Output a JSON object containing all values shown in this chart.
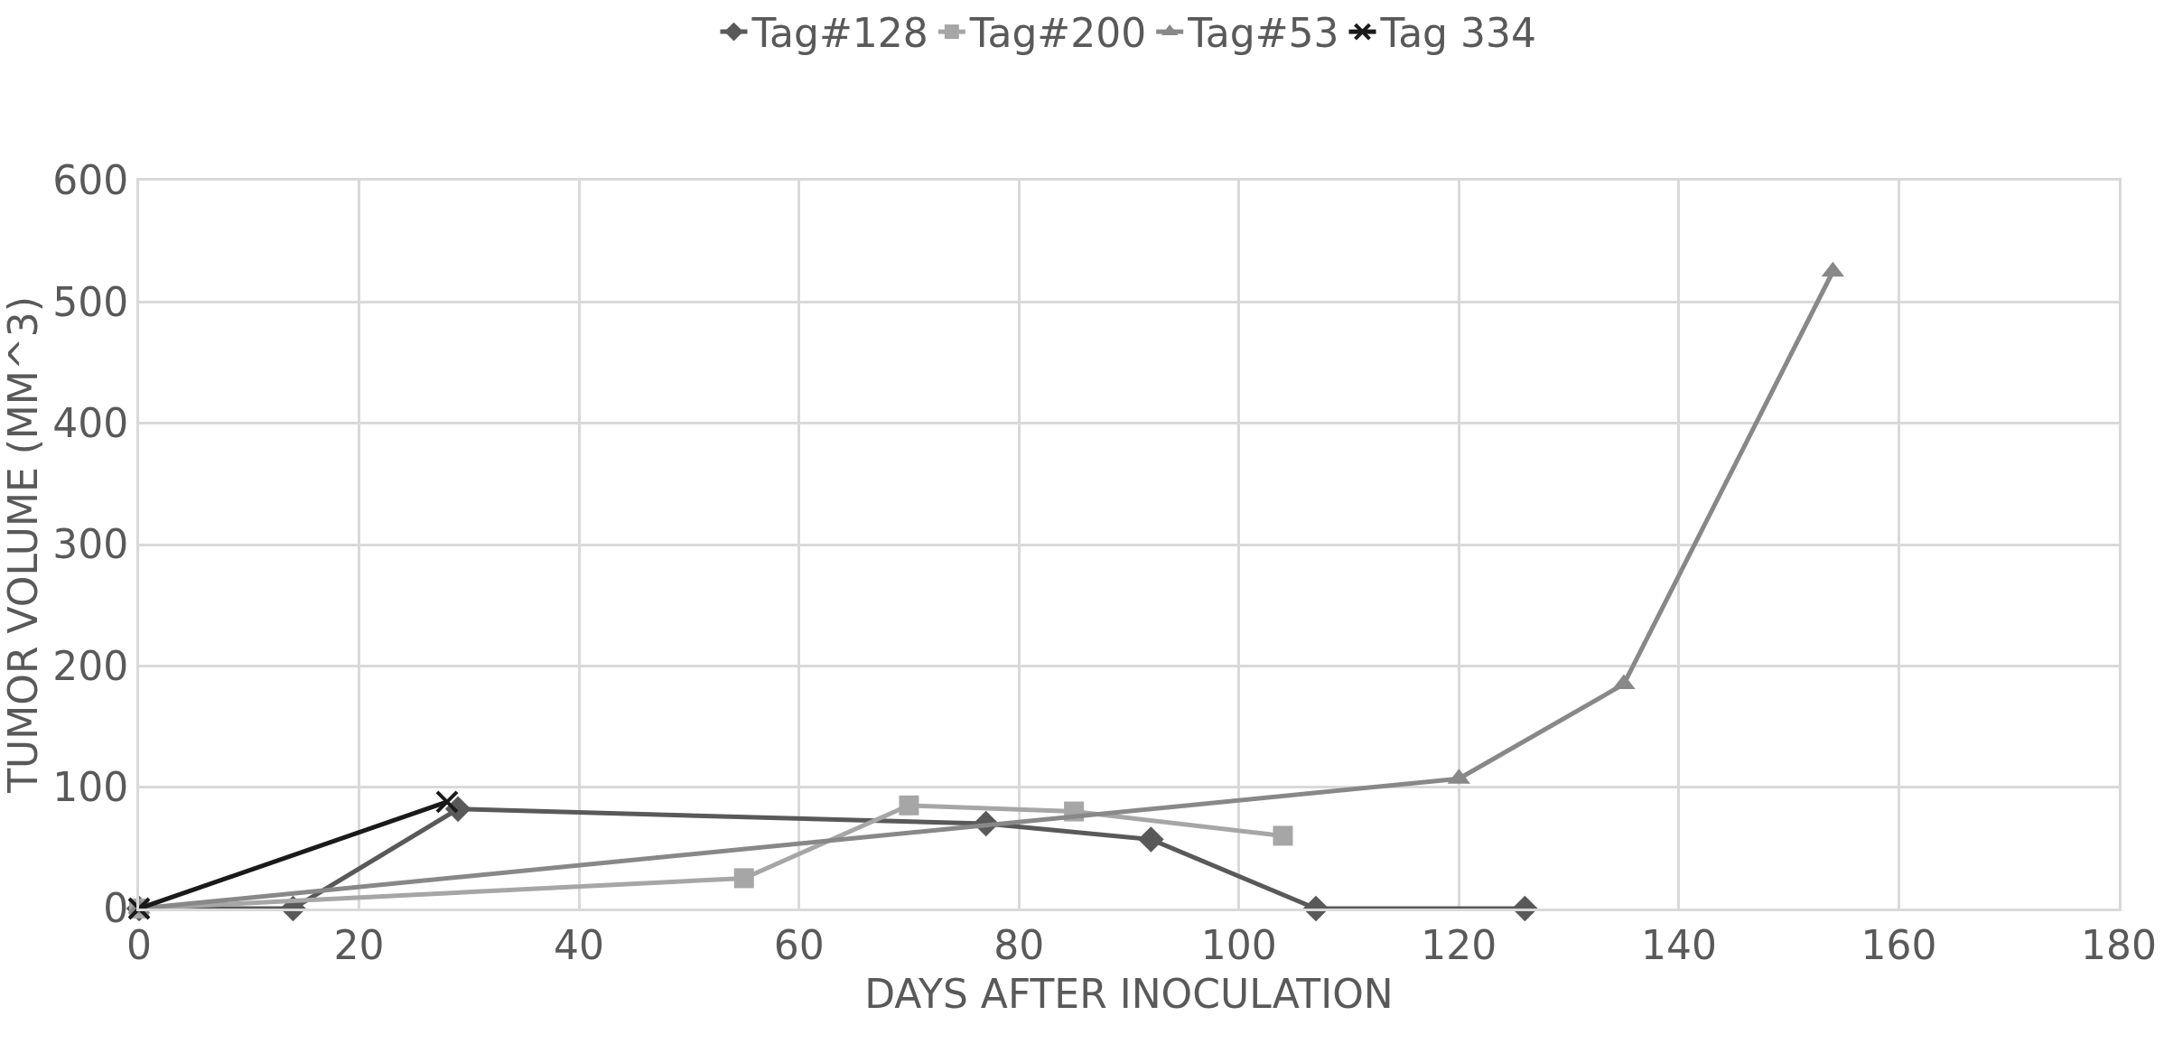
{
  "chart_data": {
    "type": "line",
    "xlabel": "DAYS AFTER INOCULATION",
    "ylabel": "TUMOR VOLUME (MM^3)",
    "xlim": [
      0,
      180
    ],
    "xticks": [
      0,
      20,
      40,
      60,
      80,
      100,
      120,
      140,
      160,
      180
    ],
    "ylim": [
      0,
      600
    ],
    "yticks": [
      0,
      100,
      200,
      300,
      400,
      500,
      600
    ],
    "grid": true,
    "legend": "top",
    "series": [
      {
        "name": "Tag#128",
        "color": "#595959",
        "marker": "diamond",
        "x": [
          0,
          14,
          29,
          77,
          92,
          107,
          126
        ],
        "values": [
          0,
          0,
          82,
          70,
          57,
          0,
          0
        ]
      },
      {
        "name": "Tag#200",
        "color": "#a6a6a6",
        "marker": "square",
        "x": [
          0,
          55,
          70,
          85,
          104
        ],
        "values": [
          0,
          25,
          85,
          80,
          60
        ]
      },
      {
        "name": "Tag#53",
        "color": "#888888",
        "marker": "triangle",
        "x": [
          0,
          120,
          135,
          154
        ],
        "values": [
          0,
          107,
          185,
          525
        ]
      },
      {
        "name": "Tag 334",
        "color": "#1a1a1a",
        "marker": "cross",
        "x": [
          0,
          28
        ],
        "values": [
          0,
          88
        ]
      }
    ]
  }
}
